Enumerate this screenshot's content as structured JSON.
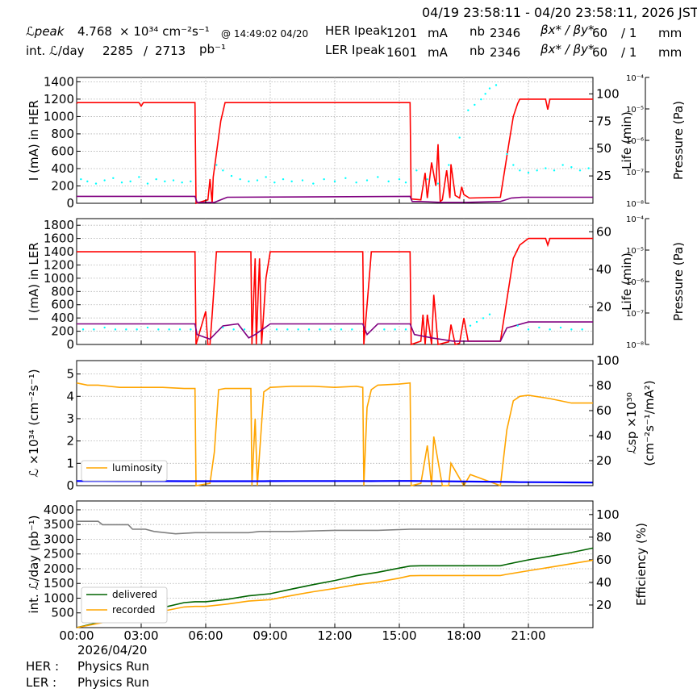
{
  "header": {
    "range": "04/19 23:58:11 - 04/20 23:58:11, 2026 JST",
    "lpeak_label": "ℒpeak",
    "lpeak_value": "4.768",
    "lpeak_unit": "× 10³⁴ cm⁻²s⁻¹",
    "lpeak_time": "@ 14:49:02 04/20",
    "intl_label": "int. ℒ/day",
    "intl_value": "2285",
    "intl_sep": "/",
    "intl_max": "2713",
    "intl_unit": "pb⁻¹",
    "her_label": "HER Ipeak",
    "her_value": "1201",
    "her_unit": "mA",
    "her_nb_label": "nb",
    "her_nb": "2346",
    "her_beta_label": "βx* / βy*",
    "her_beta_x": "60",
    "her_beta_y": "/ 1",
    "her_beta_unit": "mm",
    "ler_label": "LER Ipeak",
    "ler_value": "1601",
    "ler_unit": "mA",
    "ler_nb_label": "nb",
    "ler_nb": "2346",
    "ler_beta_label": "βx* / βy*",
    "ler_beta_x": "60",
    "ler_beta_y": "/ 1",
    "ler_beta_unit": "mm"
  },
  "footer": {
    "date": "2026/04/20",
    "her_label": "HER :",
    "her_status": "Physics Run",
    "ler_label": "LER :",
    "ler_status": "Physics Run"
  },
  "colors": {
    "red": "#ff0000",
    "purple": "#800080",
    "cyan": "#00ffff",
    "orange": "#ffa500",
    "blue": "#0000ff",
    "green": "#006400",
    "gray": "#808080",
    "grid": "#b0b0b0"
  },
  "chart_data": [
    {
      "type": "line",
      "ylabel": "I (mA) in HER",
      "y2label": "Life (min)",
      "y3label": "Pressure (Pa)",
      "xlim": [
        0,
        24
      ],
      "ylim": [
        0,
        1450
      ],
      "yticks": [
        0,
        200,
        400,
        600,
        800,
        1000,
        1200,
        1400
      ],
      "y2ticks": [
        25,
        50,
        75,
        100
      ],
      "y3ticks": [
        "10⁻⁸",
        "10⁻⁷",
        "10⁻⁶",
        "10⁻⁵",
        "10⁻⁴"
      ],
      "grid": true,
      "series": [
        {
          "color": "red",
          "x": [
            0,
            0.05,
            2.9,
            3.0,
            3.1,
            5.5,
            5.55,
            6.1,
            6.2,
            6.3,
            6.35,
            6.7,
            6.9,
            15.5,
            15.55,
            16.0,
            16.2,
            16.3,
            16.5,
            16.7,
            16.8,
            16.9,
            17.0,
            17.2,
            17.35,
            17.4,
            17.6,
            17.8,
            17.9,
            18.0,
            18.2,
            18.25,
            19.7,
            20.1,
            20.3,
            20.5,
            20.6,
            21.8,
            21.9,
            22.0,
            24
          ],
          "y": [
            1150,
            1160,
            1160,
            1120,
            1160,
            1160,
            0,
            40,
            280,
            0,
            300,
            950,
            1160,
            1160,
            50,
            40,
            350,
            60,
            470,
            200,
            680,
            20,
            40,
            380,
            60,
            450,
            90,
            60,
            190,
            100,
            70,
            60,
            70,
            700,
            1000,
            1150,
            1200,
            1200,
            1080,
            1200,
            1200
          ]
        },
        {
          "color": "purple",
          "x": [
            0,
            5.5,
            5.6,
            6.4,
            6.8,
            7.0,
            15.5,
            15.6,
            16.0,
            17.0,
            18.0,
            19.7,
            20.2,
            20.7,
            24
          ],
          "y": [
            80,
            80,
            10,
            10,
            50,
            70,
            80,
            20,
            20,
            10,
            10,
            20,
            60,
            70,
            70
          ]
        },
        {
          "color": "cyan",
          "scatter": true,
          "x": [
            0.2,
            0.5,
            0.9,
            1.3,
            1.7,
            2.1,
            2.5,
            2.9,
            3.3,
            3.7,
            4.1,
            4.5,
            4.9,
            5.3,
            6.5,
            6.8,
            7.2,
            7.6,
            8.0,
            8.4,
            8.8,
            9.2,
            9.6,
            10.0,
            10.5,
            11.0,
            11.5,
            12.0,
            12.5,
            13.0,
            13.5,
            14.0,
            14.5,
            15.0,
            15.3,
            15.8,
            16.3,
            16.8,
            17.3,
            17.8,
            18.2,
            18.5,
            18.8,
            19.0,
            19.2,
            19.5,
            20.0,
            20.3,
            20.6,
            21.0,
            21.4,
            21.8,
            22.2,
            22.6,
            23.0,
            23.4,
            23.8
          ],
          "y": [
            22,
            20,
            18,
            21,
            23,
            19,
            20,
            24,
            18,
            22,
            20,
            21,
            19,
            20,
            35,
            30,
            25,
            22,
            20,
            21,
            24,
            19,
            22,
            20,
            21,
            18,
            22,
            20,
            23,
            19,
            21,
            24,
            20,
            22,
            19,
            30,
            22,
            18,
            35,
            60,
            85,
            90,
            95,
            100,
            105,
            108,
            45,
            35,
            30,
            28,
            30,
            32,
            30,
            35,
            33,
            30,
            32
          ]
        }
      ]
    },
    {
      "type": "line",
      "ylabel": "I (mA) in LER",
      "y2label": "Life (min)",
      "y3label": "Pressure (Pa)",
      "xlim": [
        0,
        24
      ],
      "ylim": [
        0,
        1900
      ],
      "yticks": [
        0,
        200,
        400,
        600,
        800,
        1000,
        1200,
        1400,
        1600,
        1800
      ],
      "y2ticks": [
        20,
        40,
        60
      ],
      "y3ticks": [
        "10⁻⁸",
        "10⁻⁷",
        "10⁻⁶",
        "10⁻⁵",
        "10⁻⁴"
      ],
      "grid": true,
      "series": [
        {
          "color": "red",
          "x": [
            0,
            5.5,
            5.55,
            6.0,
            6.1,
            6.2,
            6.3,
            6.5,
            6.9,
            8.1,
            8.15,
            8.3,
            8.35,
            8.5,
            8.6,
            8.8,
            9.0,
            13.3,
            13.35,
            13.6,
            13.7,
            15.5,
            15.55,
            16.0,
            16.1,
            16.2,
            16.3,
            16.5,
            16.6,
            16.8,
            17.3,
            17.4,
            17.6,
            17.8,
            18.0,
            18.2,
            19.7,
            20.3,
            20.6,
            21.0,
            21.8,
            21.9,
            22.0,
            24
          ],
          "y": [
            1400,
            1400,
            0,
            500,
            0,
            0,
            450,
            1400,
            1400,
            1400,
            0,
            1300,
            0,
            1300,
            0,
            1000,
            1400,
            1400,
            0,
            1000,
            1400,
            1400,
            0,
            50,
            450,
            0,
            450,
            0,
            750,
            0,
            40,
            300,
            0,
            20,
            400,
            50,
            50,
            1300,
            1500,
            1600,
            1600,
            1500,
            1600,
            1600
          ]
        },
        {
          "color": "purple",
          "x": [
            0,
            5.5,
            5.6,
            6.2,
            6.8,
            7.5,
            8.0,
            8.3,
            9.0,
            13.3,
            13.5,
            14.0,
            15.5,
            15.7,
            16.5,
            17.5,
            18.5,
            19.7,
            20.0,
            21.0,
            24
          ],
          "y": [
            310,
            310,
            150,
            80,
            280,
            310,
            100,
            150,
            310,
            310,
            150,
            310,
            310,
            150,
            100,
            50,
            50,
            50,
            250,
            340,
            340
          ]
        },
        {
          "color": "cyan",
          "scatter": true,
          "x": [
            0.3,
            0.8,
            1.3,
            1.8,
            2.3,
            2.8,
            3.3,
            3.8,
            4.3,
            4.8,
            5.3,
            6.8,
            7.3,
            7.8,
            9.3,
            9.8,
            10.3,
            10.8,
            11.3,
            11.8,
            12.3,
            12.8,
            14.3,
            14.8,
            15.3,
            18.3,
            18.6,
            18.9,
            19.2,
            20.5,
            21.0,
            21.5,
            22.0,
            22.5,
            23.0,
            23.5
          ],
          "y": [
            8,
            8,
            9,
            8,
            8,
            8,
            9,
            8,
            8,
            8,
            8,
            9,
            8,
            8,
            8,
            8,
            8,
            8,
            8,
            8,
            8,
            8,
            8,
            8,
            8,
            10,
            12,
            14,
            16,
            10,
            8,
            9,
            8,
            9,
            8,
            8
          ]
        }
      ]
    },
    {
      "type": "line",
      "ylabel": "ℒ ×10³⁴ (cm⁻²s⁻¹)",
      "y2label": "ℒsp ×10³⁰ (cm⁻²s⁻¹/mA²)",
      "xlim": [
        0,
        24
      ],
      "ylim": [
        0,
        5.6
      ],
      "yticks": [
        0,
        1,
        2,
        3,
        4,
        5
      ],
      "y2ticks": [
        20,
        40,
        60,
        80,
        100
      ],
      "grid": true,
      "legend": {
        "entries": [
          "luminosity"
        ],
        "position": "lower-left"
      },
      "series": [
        {
          "name": "luminosity",
          "color": "orange",
          "x": [
            0,
            0.5,
            1.0,
            2.0,
            3.0,
            4.0,
            5.0,
            5.5,
            5.55,
            6.2,
            6.4,
            6.6,
            6.9,
            8.1,
            8.15,
            8.3,
            8.4,
            8.7,
            9.0,
            10.0,
            11.0,
            12.0,
            13.0,
            13.3,
            13.35,
            13.5,
            13.7,
            14.0,
            15.0,
            15.5,
            15.55,
            16.0,
            16.3,
            16.5,
            16.6,
            17.0,
            17.3,
            17.4,
            18.0,
            18.3,
            19.7,
            20.0,
            20.3,
            20.6,
            21.0,
            22.0,
            23.0,
            24
          ],
          "y": [
            4.6,
            4.5,
            4.5,
            4.4,
            4.4,
            4.4,
            4.35,
            4.35,
            0,
            0.1,
            1.5,
            4.3,
            4.35,
            4.35,
            0,
            3.0,
            0,
            4.2,
            4.4,
            4.45,
            4.45,
            4.4,
            4.45,
            4.4,
            0,
            3.5,
            4.3,
            4.5,
            4.55,
            4.6,
            0,
            0.1,
            1.8,
            0,
            2.2,
            0,
            0,
            1.0,
            0,
            0.5,
            0,
            2.5,
            3.8,
            4.0,
            4.05,
            3.9,
            3.7,
            3.7
          ]
        },
        {
          "color": "blue",
          "x": [
            0,
            1.0,
            2.0,
            3.0,
            4.0,
            5.0,
            5.5,
            6.6,
            6.9,
            8.0,
            8.7,
            9.0,
            10.0,
            11.0,
            12.0,
            13.0,
            13.3,
            13.7,
            14.0,
            15.0,
            15.5,
            20.0,
            20.3,
            20.6,
            21.0,
            22.0,
            23.0,
            24
          ],
          "y": [
            3.7,
            3.65,
            3.6,
            3.6,
            3.6,
            3.58,
            3.58,
            3.55,
            3.55,
            3.55,
            3.55,
            3.6,
            3.65,
            3.7,
            3.7,
            3.65,
            3.65,
            3.6,
            3.7,
            3.75,
            3.75,
            3.0,
            2.9,
            2.8,
            2.75,
            2.7,
            2.6,
            2.5
          ]
        }
      ]
    },
    {
      "type": "line",
      "ylabel": "int. ℒ/day (pb⁻¹)",
      "y2label": "Efficiency (%)",
      "xlim": [
        0,
        24
      ],
      "ylim": [
        0,
        4300
      ],
      "yticks": [
        500,
        1000,
        1500,
        2000,
        2500,
        3000,
        3500,
        4000
      ],
      "y2ticks": [
        20,
        40,
        60,
        80,
        100
      ],
      "xticks": [
        "00:00",
        "03:00",
        "06:00",
        "09:00",
        "12:00",
        "15:00",
        "18:00",
        "21:00"
      ],
      "grid": true,
      "legend": {
        "entries": [
          "delivered",
          "recorded"
        ],
        "position": "lower-left"
      },
      "series": [
        {
          "name": "delivered",
          "color": "green",
          "x": [
            0,
            1,
            2,
            3,
            4,
            5,
            5.5,
            6,
            7,
            8,
            9,
            10,
            11,
            12,
            13,
            14,
            15,
            15.5,
            16,
            17,
            18,
            19,
            19.7,
            20,
            21,
            22,
            23,
            24
          ],
          "y": [
            0,
            170,
            350,
            500,
            680,
            850,
            880,
            880,
            960,
            1080,
            1150,
            1310,
            1460,
            1600,
            1760,
            1880,
            2020,
            2090,
            2100,
            2100,
            2100,
            2100,
            2100,
            2150,
            2300,
            2420,
            2550,
            2700
          ]
        },
        {
          "name": "recorded",
          "color": "orange",
          "x": [
            0,
            1,
            2,
            3,
            4,
            5,
            5.5,
            6,
            7,
            8,
            9,
            10,
            11,
            12,
            13,
            14,
            15,
            15.5,
            16,
            17,
            18,
            19,
            19.7,
            20,
            21,
            22,
            23,
            24
          ],
          "y": [
            0,
            140,
            290,
            420,
            560,
            700,
            720,
            720,
            800,
            900,
            950,
            1090,
            1220,
            1330,
            1460,
            1550,
            1680,
            1760,
            1770,
            1770,
            1770,
            1770,
            1770,
            1810,
            1930,
            2050,
            2170,
            2290
          ]
        },
        {
          "color": "gray",
          "x": [
            0,
            1.0,
            1.2,
            1.6,
            2.4,
            2.6,
            3.2,
            3.6,
            4.6,
            5.5,
            6.0,
            8.0,
            8.5,
            10,
            12,
            14,
            15.5,
            16,
            18,
            20,
            22,
            24
          ],
          "y": [
            94,
            94,
            91,
            91,
            91,
            87,
            87,
            85,
            83,
            84,
            84,
            84,
            85,
            85,
            86,
            86,
            87,
            87,
            87,
            87,
            87,
            87
          ]
        }
      ]
    }
  ]
}
